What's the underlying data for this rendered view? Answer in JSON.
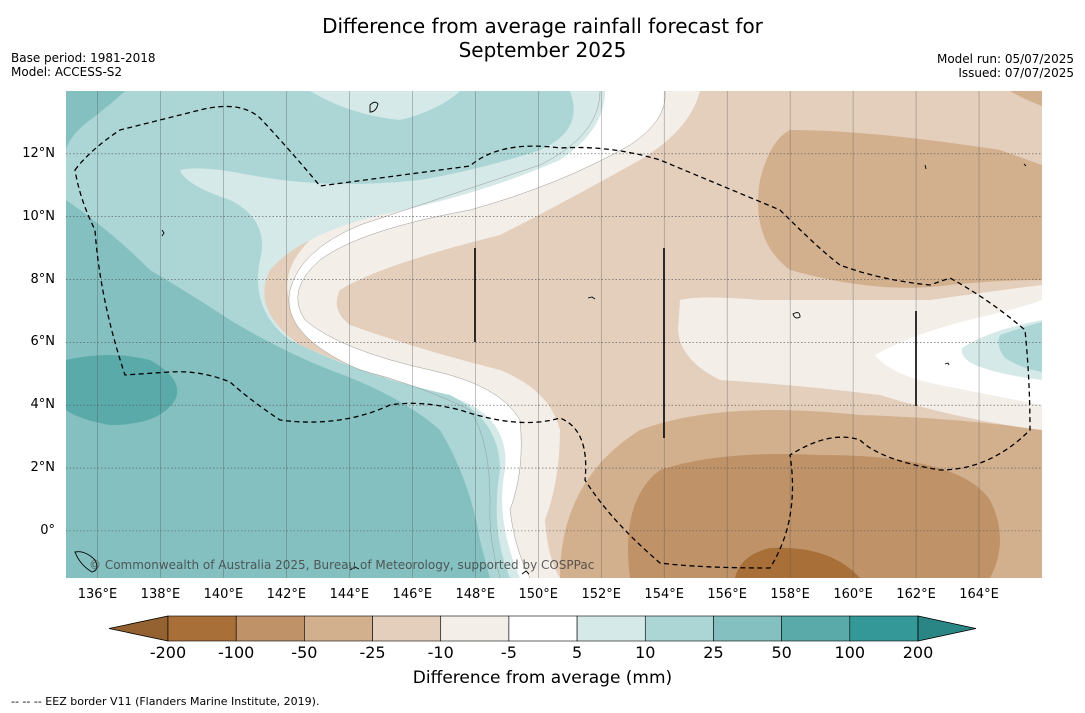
{
  "title_line1": "Difference from average rainfall forecast for",
  "title_line2": "September 2025",
  "base_period": "Base period: 1981-2018",
  "model": "Model: ACCESS-S2",
  "model_run": "Model run: 05/07/2025",
  "issued": "Issued: 07/07/2025",
  "copyright": "© Commonwealth of Australia 2025, Bureau of Meteorology, supported by COSPPac",
  "footnote": "-- -- -- EEZ border V11 (Flanders Marine Institute, 2019).",
  "map": {
    "lon_range": [
      135,
      166
    ],
    "lat_range": [
      -1.5,
      14
    ],
    "lat_labels": [
      "12°N",
      "10°N",
      "8°N",
      "6°N",
      "4°N",
      "2°N",
      "0°"
    ],
    "lon_labels": [
      "136°E",
      "138°E",
      "140°E",
      "142°E",
      "144°E",
      "146°E",
      "148°E",
      "150°E",
      "152°E",
      "154°E",
      "156°E",
      "158°E",
      "160°E",
      "162°E",
      "164°E"
    ]
  },
  "colorbar": {
    "title": "Difference from average (mm)",
    "ticks": [
      "-200",
      "-100",
      "-50",
      "-25",
      "-10",
      "-5",
      "5",
      "10",
      "25",
      "50",
      "100",
      "200"
    ],
    "colors": [
      "#a87038",
      "#bf9268",
      "#d2b08e",
      "#e4cfbc",
      "#f3eee8",
      "#ffffff",
      "#d5e9e9",
      "#acd6d6",
      "#84c0c0",
      "#5aaaaa",
      "#349898"
    ],
    "under_color": "#936230",
    "over_color": "#2a8585"
  }
}
